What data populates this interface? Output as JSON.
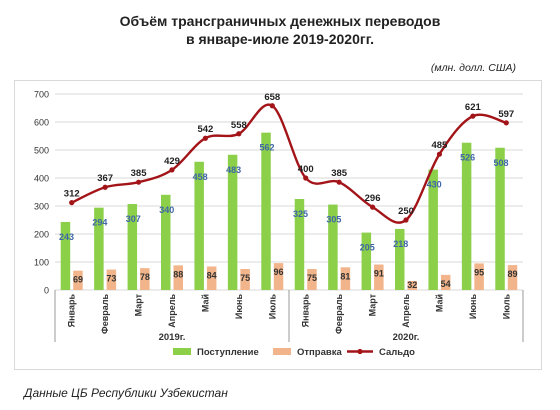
{
  "title_line1": "Объём трансграничных денежных переводов",
  "title_line2": "в январе-июле 2019-2020гг.",
  "units": "(млн. долл. США)",
  "source": "Данные ЦБ Республики Узбекистан",
  "colors": {
    "inflow": "#8cd04a",
    "outflow": "#f2b48a",
    "balance": "#a31419",
    "inflow_label": "#3f66a8",
    "grid": "#d9d9d9"
  },
  "chart_data": {
    "type": "bar",
    "categories": [
      "Январь",
      "Февраль",
      "Март",
      "Апрель",
      "Май",
      "Июнь",
      "Июль",
      "Январь",
      "Февраль",
      "Март",
      "Апрель",
      "Май",
      "Июнь",
      "Июль"
    ],
    "groups": [
      {
        "label": "2019г.",
        "count": 7
      },
      {
        "label": "2020г.",
        "count": 7
      }
    ],
    "series": [
      {
        "name": "Поступление",
        "type": "bar",
        "values": [
          243,
          294,
          307,
          340,
          458,
          483,
          562,
          325,
          305,
          205,
          218,
          430,
          526,
          508
        ]
      },
      {
        "name": "Отправка",
        "type": "bar",
        "values": [
          69,
          73,
          78,
          88,
          84,
          75,
          96,
          75,
          81,
          91,
          32,
          54,
          95,
          89
        ]
      },
      {
        "name": "Сальдо",
        "type": "line",
        "values": [
          312,
          367,
          385,
          429,
          542,
          558,
          658,
          400,
          385,
          296,
          250,
          485,
          621,
          597
        ]
      }
    ],
    "y_ticks": [
      0,
      100,
      200,
      300,
      400,
      500,
      600,
      700
    ],
    "ylim": [
      0,
      700
    ],
    "grid": true,
    "legend": "bottom"
  }
}
